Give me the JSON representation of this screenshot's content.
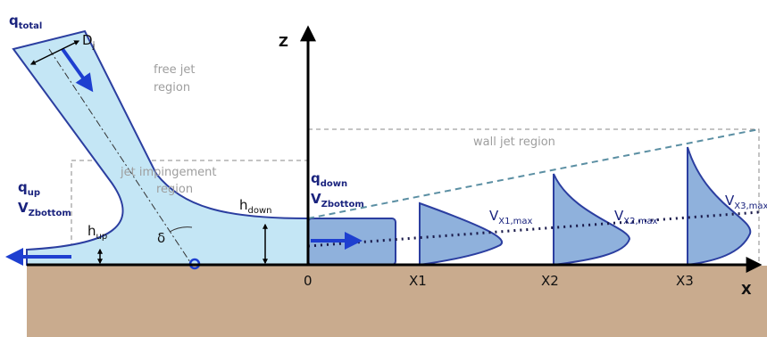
{
  "labels": {
    "q_total": {
      "text": "q",
      "sub": "total"
    },
    "d_j": {
      "text": "D",
      "sub": "j"
    },
    "free_jet": [
      "free jet",
      "region"
    ],
    "axis_z": "Z",
    "wall_jet": "wall jet region",
    "impingement": [
      "jet impingement",
      "region"
    ],
    "q_up": {
      "text": "q",
      "sub": "up"
    },
    "v_left": {
      "text": "V",
      "sub": "Zbottom"
    },
    "q_down": {
      "text": "q",
      "sub": "down"
    },
    "v_right": {
      "text": "V",
      "sub": "Zbottom"
    },
    "h_down": {
      "text": "h",
      "sub": "down"
    },
    "h_up": {
      "text": "h",
      "sub": "up"
    },
    "delta": "δ",
    "origin": "0",
    "x1": "X1",
    "x2": "X2",
    "x3": "X3",
    "axis_x": "X",
    "vx1": {
      "text": "V",
      "sub": "X1,max"
    },
    "vx2": {
      "text": "V",
      "sub": "X2,max"
    },
    "vx3": {
      "text": "V",
      "sub": "X3,max"
    }
  }
}
